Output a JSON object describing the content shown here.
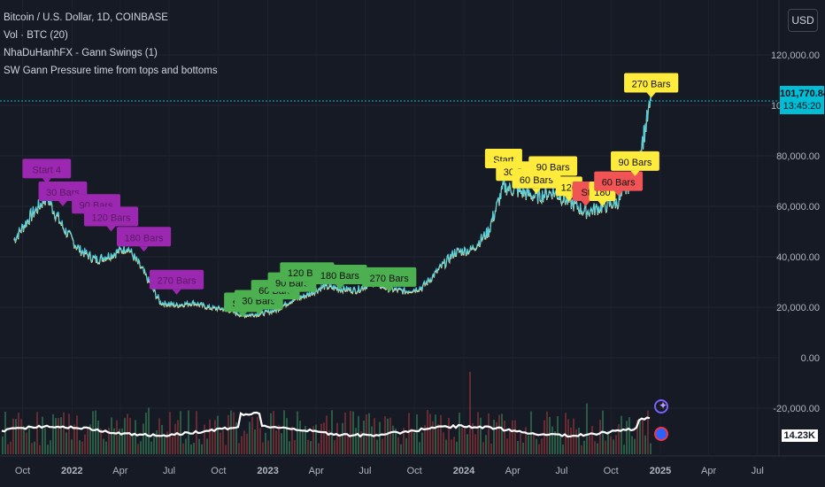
{
  "legend": [
    "Bitcoin / U.S. Dollar, 1D, COINBASE",
    "Vol · BTC (20)",
    "NhaDuHanhFX - Gann Swings (1)",
    "SW Gann Pressure time from tops and bottoms"
  ],
  "currency_button": "USD",
  "last_price": "101,770.84",
  "countdown": "13:45:20",
  "volume_value": "14.23K",
  "price_axis": [
    "120,000.00",
    "100,000.00",
    "80,000.00",
    "60,000.00",
    "40,000.00",
    "20,000.00",
    "0.00",
    "-20,000.00"
  ],
  "time_axis": [
    "Oct",
    "2022",
    "Apr",
    "Jul",
    "Oct",
    "2023",
    "Apr",
    "Jul",
    "Oct",
    "2024",
    "Apr",
    "Jul",
    "Oct",
    "2025",
    "Apr",
    "Jul"
  ],
  "colors": {
    "background": "#161a25",
    "purple": "#9c27b0",
    "green": "#4caf50",
    "yellow": "#ffeb3b",
    "red": "#f05454",
    "price_line": "#00bcd4"
  },
  "chart_data": {
    "type": "line",
    "title": "Bitcoin / U.S. Dollar, 1D, COINBASE",
    "ylim": [
      -40000,
      130000
    ],
    "x": [
      "2021-09",
      "2021-10",
      "2021-11",
      "2021-12",
      "2022-01",
      "2022-02",
      "2022-03",
      "2022-04",
      "2022-05",
      "2022-06",
      "2022-07",
      "2022-08",
      "2022-09",
      "2022-10",
      "2022-11",
      "2022-12",
      "2023-01",
      "2023-02",
      "2023-03",
      "2023-04",
      "2023-05",
      "2023-06",
      "2023-07",
      "2023-08",
      "2023-09",
      "2023-10",
      "2023-11",
      "2023-12",
      "2024-01",
      "2024-02",
      "2024-03",
      "2024-04",
      "2024-05",
      "2024-06",
      "2024-07",
      "2024-08",
      "2024-09",
      "2024-10",
      "2024-11",
      "2024-12"
    ],
    "series": [
      {
        "values": [
          47000,
          56000,
          64000,
          52000,
          43000,
          39000,
          41000,
          44000,
          34000,
          22000,
          21000,
          22000,
          20000,
          19500,
          17000,
          17500,
          19000,
          23000,
          25000,
          28500,
          27500,
          27000,
          30000,
          27500,
          26500,
          28000,
          35000,
          42000,
          43000,
          50000,
          68000,
          66000,
          64000,
          66000,
          62000,
          58000,
          60000,
          62000,
          73000,
          101770
        ]
      }
    ],
    "annotations": [
      {
        "text": "Start 4",
        "x": "2021-11",
        "y": 69000,
        "color": "purple"
      },
      {
        "text": "30 Bars",
        "x": "2021-12",
        "y": 60000,
        "color": "purple"
      },
      {
        "text": "90 Bars",
        "x": "2022-02",
        "y": 55000,
        "color": "purple"
      },
      {
        "text": "120 Bars",
        "x": "2022-03",
        "y": 50000,
        "color": "purple"
      },
      {
        "text": "180 Bars",
        "x": "2022-05",
        "y": 42000,
        "color": "purple"
      },
      {
        "text": "270 Bars",
        "x": "2022-07",
        "y": 25000,
        "color": "purple"
      },
      {
        "text": "Start",
        "x": "2022-11",
        "y": 16000,
        "color": "green"
      },
      {
        "text": "30 Bars",
        "x": "2022-12",
        "y": 17000,
        "color": "green"
      },
      {
        "text": "60 Bars",
        "x": "2023-01",
        "y": 21000,
        "color": "green"
      },
      {
        "text": "90 Bars",
        "x": "2023-02",
        "y": 24000,
        "color": "green"
      },
      {
        "text": "120 Bars",
        "x": "2023-03",
        "y": 28000,
        "color": "green"
      },
      {
        "text": "180 Bars",
        "x": "2023-05",
        "y": 27000,
        "color": "green"
      },
      {
        "text": "270 Bars",
        "x": "2023-08",
        "y": 26000,
        "color": "green"
      },
      {
        "text": "Start",
        "x": "2024-03",
        "y": 73000,
        "color": "yellow"
      },
      {
        "text": "30 Bars",
        "x": "2024-04",
        "y": 68000,
        "color": "yellow"
      },
      {
        "text": "60 Bars",
        "x": "2024-05",
        "y": 65000,
        "color": "yellow"
      },
      {
        "text": "90 Bars",
        "x": "2024-06",
        "y": 70000,
        "color": "yellow"
      },
      {
        "text": "120",
        "x": "2024-07",
        "y": 62000,
        "color": "yellow"
      },
      {
        "text": "St",
        "x": "2024-08",
        "y": 60000,
        "color": "red"
      },
      {
        "text": "180",
        "x": "2024-09",
        "y": 60000,
        "color": "yellow"
      },
      {
        "text": "60 Bars",
        "x": "2024-10",
        "y": 64000,
        "color": "red"
      },
      {
        "text": "90 Bars",
        "x": "2024-11",
        "y": 72000,
        "color": "yellow"
      },
      {
        "text": "270 Bars",
        "x": "2024-12",
        "y": 103000,
        "color": "yellow"
      }
    ]
  }
}
